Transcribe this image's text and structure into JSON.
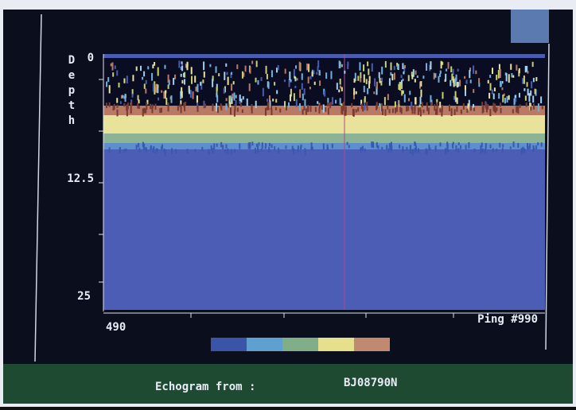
{
  "screen": {
    "y_axis_label": "Depth",
    "y_ticks": [
      "0",
      "12.5",
      "25"
    ],
    "x_start": "490",
    "x_end": "Ping #990"
  },
  "status_bar": {
    "label": "Echogram from :",
    "file": "BJ08790N"
  }
}
